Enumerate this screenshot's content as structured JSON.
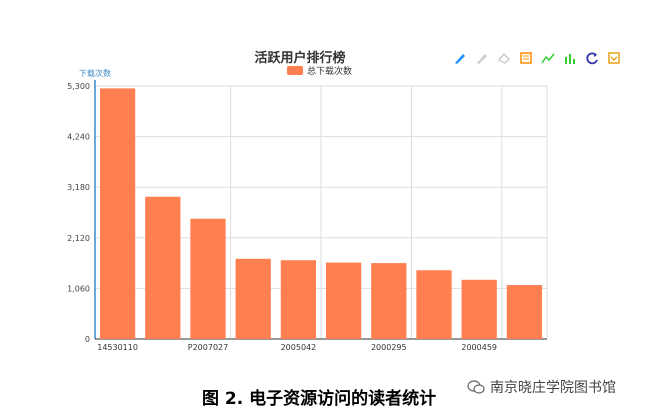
{
  "chart_data": {
    "type": "bar",
    "title": "活跃用户排行榜",
    "legend": {
      "position": "top-center",
      "entries": [
        "总下载次数"
      ]
    },
    "ylabel": "下载次数",
    "xlabel": "",
    "ylim": [
      0,
      5300
    ],
    "yticks": [
      0,
      1060,
      2120,
      3180,
      4240,
      5300
    ],
    "ytick_labels": [
      "0",
      "1,060",
      "2,120",
      "3,180",
      "4,240",
      "5,300"
    ],
    "grid": true,
    "colors": {
      "bar": "#ff7f50",
      "axis": "#3a8bc8",
      "grid": "#dddddd"
    },
    "categories": [
      "14530110",
      "",
      "P2007027",
      "",
      "2005042",
      "",
      "2000295",
      "",
      "2000459",
      ""
    ],
    "series": [
      {
        "name": "总下载次数",
        "values": [
          5250,
          2980,
          2520,
          1680,
          1650,
          1600,
          1590,
          1440,
          1240,
          1130
        ]
      }
    ]
  },
  "toolbar": {
    "icons": [
      "mark-icon",
      "mark-undo-icon",
      "mark-clear-icon",
      "data-view-icon",
      "line-chart-icon",
      "bar-chart-icon",
      "restore-icon",
      "save-image-icon"
    ]
  },
  "caption": "图 2. 电子资源访问的读者统计",
  "watermark": "南京晓庄学院图书馆"
}
